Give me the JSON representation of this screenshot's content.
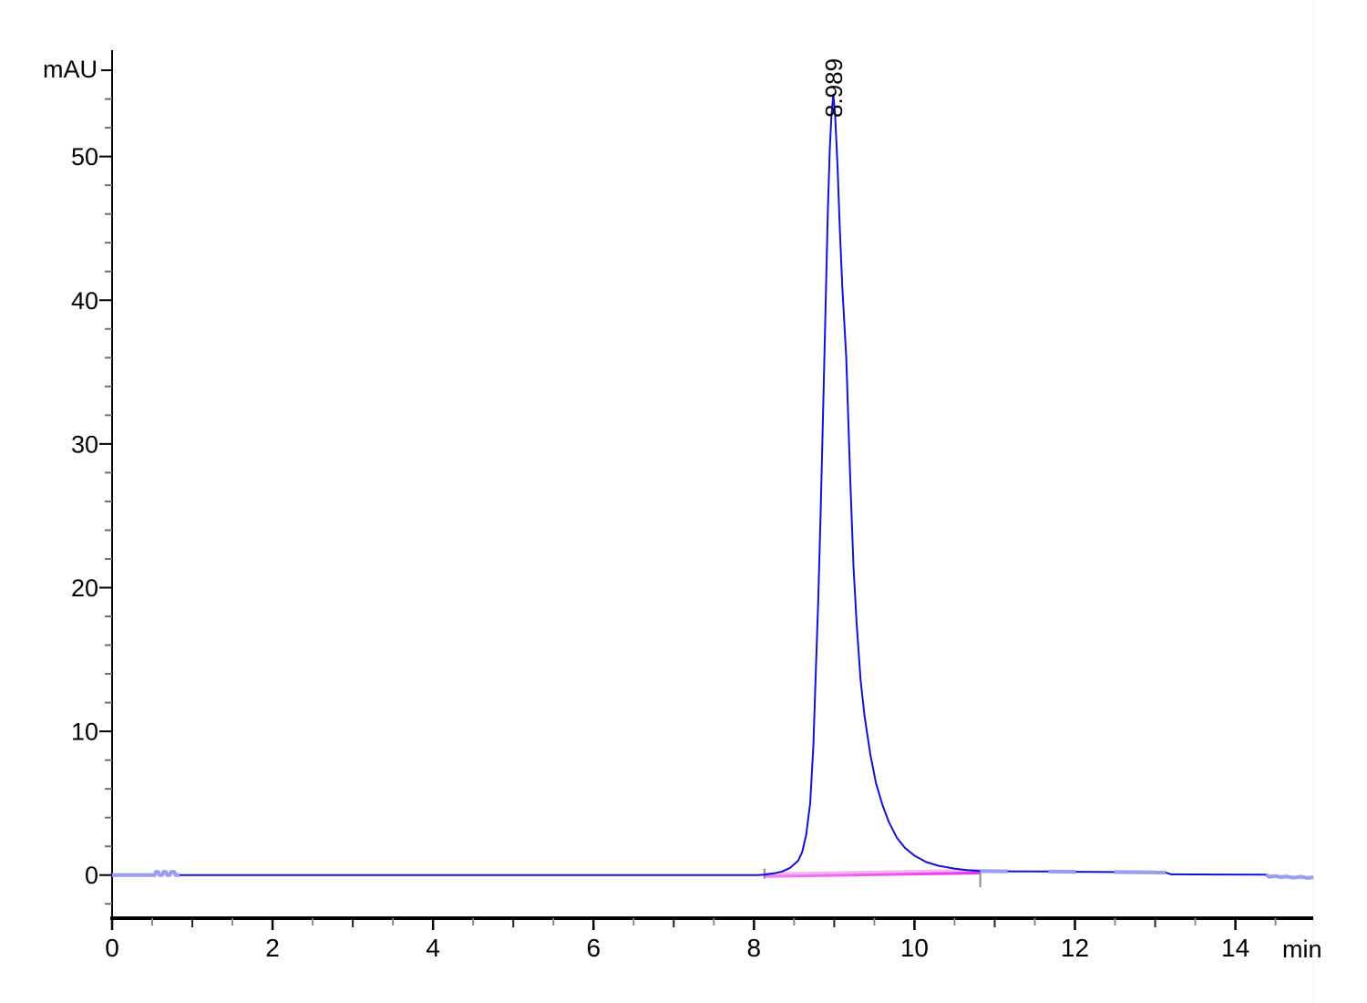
{
  "figure": {
    "kind": "chromatogram"
  },
  "chart_data": {
    "type": "line",
    "title": "",
    "ylabel": "mAU",
    "xlabel": "min",
    "xlim": [
      0,
      14.97
    ],
    "ylim": [
      -3,
      57.4
    ],
    "grid": false,
    "legend": false,
    "x_major_ticks": [
      0,
      2,
      4,
      6,
      8,
      10,
      12,
      14
    ],
    "x_minor_tick_step": 0.5,
    "y_major_ticks": [
      0,
      10,
      20,
      30,
      40,
      50
    ],
    "y_minor_tick_step": 2,
    "y_minor_tick_range": [
      -2,
      56
    ],
    "peak": {
      "label": "8.989",
      "retention_time_min": 8.989,
      "apex_mau": 54.3
    },
    "integration": {
      "start_min": 8.13,
      "end_min": 10.82,
      "baseline_start_mau": -0.1,
      "baseline_end_mau": 0.15
    },
    "series": [
      {
        "name": "signal",
        "color": "#1111d6",
        "points": [
          [
            0,
            0
          ],
          [
            0.51,
            0
          ],
          [
            0.53,
            0
          ],
          [
            0.545,
            0.22
          ],
          [
            0.575,
            0.22
          ],
          [
            0.59,
            0
          ],
          [
            0.625,
            0
          ],
          [
            0.64,
            0.22
          ],
          [
            0.67,
            0.22
          ],
          [
            0.685,
            0
          ],
          [
            0.72,
            0
          ],
          [
            0.735,
            0.22
          ],
          [
            0.775,
            0.22
          ],
          [
            0.79,
            0
          ],
          [
            0.84,
            0
          ],
          [
            2,
            0
          ],
          [
            4,
            0
          ],
          [
            6,
            0
          ],
          [
            7.5,
            0
          ],
          [
            8.05,
            0
          ],
          [
            8.13,
            0.03
          ],
          [
            8.25,
            0.12
          ],
          [
            8.35,
            0.25
          ],
          [
            8.45,
            0.5
          ],
          [
            8.55,
            1
          ],
          [
            8.6,
            1.6
          ],
          [
            8.65,
            2.8
          ],
          [
            8.7,
            5
          ],
          [
            8.74,
            9
          ],
          [
            8.77,
            14
          ],
          [
            8.8,
            19
          ],
          [
            8.83,
            25
          ],
          [
            8.86,
            32
          ],
          [
            8.89,
            39
          ],
          [
            8.92,
            46
          ],
          [
            8.945,
            50.5
          ],
          [
            8.965,
            52.8
          ],
          [
            8.989,
            54.3
          ],
          [
            9.01,
            53
          ],
          [
            9.04,
            49.5
          ],
          [
            9.07,
            45
          ],
          [
            9.1,
            41
          ],
          [
            9.15,
            36
          ],
          [
            9.2,
            27.5
          ],
          [
            9.24,
            21.5
          ],
          [
            9.28,
            17.5
          ],
          [
            9.33,
            13.5
          ],
          [
            9.38,
            11
          ],
          [
            9.45,
            8.4
          ],
          [
            9.52,
            6.4
          ],
          [
            9.6,
            4.9
          ],
          [
            9.68,
            3.7
          ],
          [
            9.78,
            2.6
          ],
          [
            9.88,
            1.9
          ],
          [
            10,
            1.35
          ],
          [
            10.15,
            0.9
          ],
          [
            10.3,
            0.65
          ],
          [
            10.5,
            0.45
          ],
          [
            10.65,
            0.35
          ],
          [
            10.82,
            0.28
          ],
          [
            11.16,
            0.26
          ],
          [
            11.67,
            0.25
          ],
          [
            12.01,
            0.23
          ],
          [
            12.49,
            0.21
          ],
          [
            13.13,
            0.18
          ],
          [
            13.2,
            0.05
          ],
          [
            13.8,
            0.04
          ],
          [
            14.38,
            0.03
          ],
          [
            14.42,
            -0.12
          ],
          [
            14.5,
            -0.06
          ],
          [
            14.56,
            -0.14
          ],
          [
            14.64,
            -0.1
          ],
          [
            14.72,
            -0.18
          ],
          [
            14.82,
            -0.12
          ],
          [
            14.9,
            -0.2
          ],
          [
            14.97,
            -0.15
          ]
        ]
      }
    ],
    "trace_light_segments": [
      [
        0,
        0.51
      ],
      [
        0.51,
        0.84
      ],
      [
        10.82,
        11.16
      ],
      [
        11.67,
        12.01
      ],
      [
        12.49,
        13.13
      ],
      [
        14.38,
        14.97
      ]
    ],
    "colors": {
      "trace": "#1111d6",
      "trace_light": "#9a9ef0",
      "integration_baseline_left": "#ec86e8",
      "integration_baseline_right": "#f02ff0",
      "integration_baseline_halo": "#f6a6f4",
      "integration_marker": "#8a8a8a",
      "axis": "#000000",
      "y_minor_tick": "#6e6e6e",
      "x_half_tick": "#8a8a8a",
      "x_odd_tick": "#222222"
    }
  }
}
